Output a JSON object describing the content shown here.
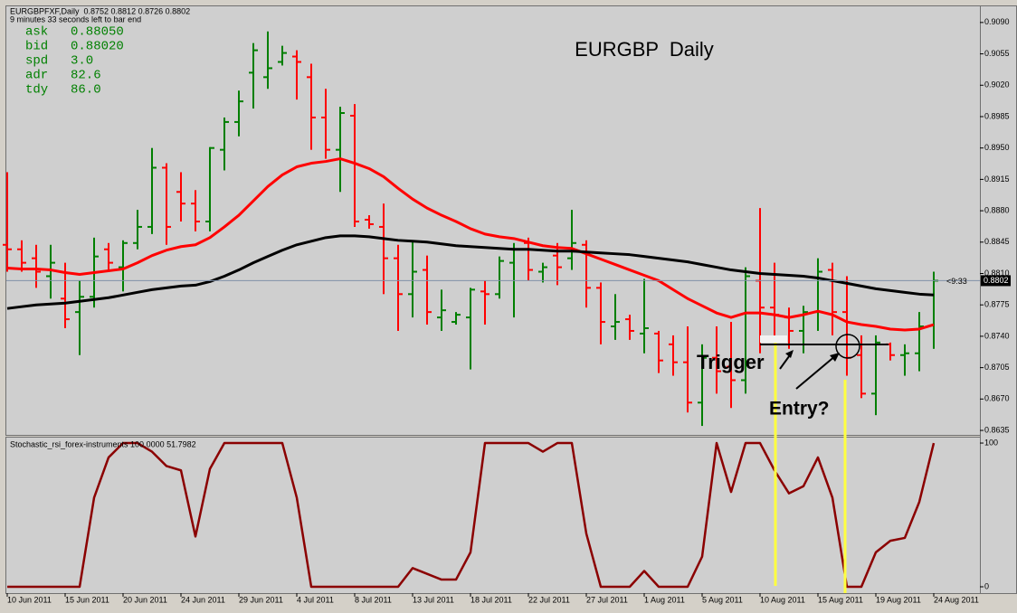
{
  "chart_data": [
    {
      "type": "ohlc",
      "header": "EURGBPFXF,Daily  0.8752 0.8812 0.8726 0.8802",
      "timer": "9 minutes 33 seconds left to bar end",
      "title": "EURGBP  Daily",
      "info": [
        {
          "label": "ask",
          "value": "0.88050"
        },
        {
          "label": "bid",
          "value": "0.88020"
        },
        {
          "label": "spd",
          "value": "3.0"
        },
        {
          "label": "adr",
          "value": "82.6"
        },
        {
          "label": "tdy",
          "value": "86.0"
        }
      ],
      "info_color": "#008000",
      "annotations": [
        "Trigger",
        "Entry?"
      ],
      "categories": [
        "10 Jun 2011",
        null,
        null,
        null,
        "15 Jun 2011",
        null,
        null,
        null,
        "20 Jun 2011",
        null,
        null,
        null,
        "24 Jun 2011",
        null,
        null,
        null,
        "29 Jun 2011",
        null,
        null,
        null,
        "4 Jul 2011",
        null,
        null,
        null,
        "8 Jul 2011",
        null,
        null,
        null,
        "13 Jul 2011",
        null,
        null,
        null,
        "18 Jul 2011",
        null,
        null,
        null,
        "22 Jul 2011",
        null,
        null,
        null,
        "27 Jul 2011",
        null,
        null,
        null,
        "1 Aug 2011",
        null,
        null,
        null,
        "5 Aug 2011",
        null,
        null,
        null,
        "10 Aug 2011",
        null,
        null,
        null,
        "15 Aug 2011",
        null,
        null,
        null,
        "19 Aug 2011",
        null,
        null,
        null,
        "24 Aug 2011"
      ],
      "open": [
        0.8842,
        0.8837,
        0.8827,
        0.8807,
        0.8782,
        0.8767,
        0.8784,
        0.8837,
        0.8817,
        0.8844,
        0.8862,
        0.8928,
        0.8901,
        0.8888,
        0.8868,
        0.8948,
        0.8979,
        0.9034,
        0.9029,
        0.9046,
        0.9052,
        0.9029,
        0.8984,
        0.8948,
        0.8986,
        0.887,
        0.8862,
        0.8827,
        0.8787,
        0.8814,
        0.8761,
        0.8756,
        0.8761,
        0.879,
        0.8787,
        0.8822,
        0.8844,
        0.8812,
        0.883,
        0.8827,
        0.8842,
        0.8794,
        0.8751,
        0.8759,
        0.8743,
        0.8743,
        0.8731,
        0.8711,
        0.8666,
        0.8716,
        0.8706,
        0.8691,
        0.8802,
        0.8772,
        0.8761,
        0.8746,
        0.8767,
        0.8814,
        0.8767,
        0.8719,
        0.8676,
        0.8731,
        0.8719,
        0.8721,
        0.8752
      ],
      "high": [
        0.8923,
        0.8847,
        0.8842,
        0.8842,
        0.8822,
        0.8802,
        0.885,
        0.8844,
        0.8847,
        0.8881,
        0.895,
        0.8933,
        0.8923,
        0.8903,
        0.8951,
        0.8984,
        0.9014,
        0.9067,
        0.908,
        0.9064,
        0.9059,
        0.9044,
        0.9016,
        0.8996,
        0.8999,
        0.8875,
        0.8888,
        0.8842,
        0.8847,
        0.883,
        0.8792,
        0.8767,
        0.8794,
        0.8802,
        0.8829,
        0.8844,
        0.885,
        0.8822,
        0.8844,
        0.8881,
        0.8847,
        0.88,
        0.8787,
        0.8764,
        0.8804,
        0.8746,
        0.8741,
        0.8751,
        0.8731,
        0.8751,
        0.8756,
        0.8817,
        0.8883,
        0.8822,
        0.8772,
        0.8774,
        0.8827,
        0.8822,
        0.8807,
        0.8741,
        0.8741,
        0.8733,
        0.8731,
        0.8767,
        0.8812
      ],
      "low": [
        0.8812,
        0.8812,
        0.8794,
        0.8782,
        0.8749,
        0.8719,
        0.8772,
        0.8812,
        0.879,
        0.8837,
        0.8854,
        0.8842,
        0.8868,
        0.8857,
        0.8857,
        0.8925,
        0.8963,
        0.8994,
        0.9016,
        0.9042,
        0.9004,
        0.8948,
        0.8938,
        0.8901,
        0.8862,
        0.886,
        0.8787,
        0.8746,
        0.8761,
        0.8753,
        0.8746,
        0.8753,
        0.8703,
        0.8753,
        0.8782,
        0.8761,
        0.8802,
        0.88,
        0.8797,
        0.8814,
        0.8772,
        0.8731,
        0.8736,
        0.8736,
        0.8721,
        0.8699,
        0.8696,
        0.8655,
        0.864,
        0.8676,
        0.866,
        0.8676,
        0.8721,
        0.8736,
        0.8726,
        0.8721,
        0.8746,
        0.8741,
        0.8696,
        0.8671,
        0.8652,
        0.8713,
        0.8696,
        0.8701,
        0.8726
      ],
      "close": [
        0.8837,
        0.8822,
        0.8812,
        0.8822,
        0.8759,
        0.8784,
        0.8829,
        0.8822,
        0.8844,
        0.8862,
        0.8928,
        0.8862,
        0.8888,
        0.8868,
        0.895,
        0.8979,
        0.9002,
        0.9059,
        0.9039,
        0.9056,
        0.9046,
        0.8984,
        0.8948,
        0.8989,
        0.8868,
        0.8865,
        0.8827,
        0.8787,
        0.8812,
        0.8767,
        0.8769,
        0.8764,
        0.8792,
        0.8787,
        0.8824,
        0.8837,
        0.8814,
        0.8817,
        0.8817,
        0.8844,
        0.8794,
        0.8756,
        0.8756,
        0.8746,
        0.8749,
        0.8713,
        0.8711,
        0.8666,
        0.8716,
        0.8701,
        0.8691,
        0.8807,
        0.8772,
        0.8764,
        0.8746,
        0.8767,
        0.8812,
        0.8767,
        0.8716,
        0.8676,
        0.8733,
        0.8719,
        0.8721,
        0.8751,
        0.8802
      ],
      "up_color": "#007f00",
      "down_color": "#ff0000",
      "series": [
        {
          "color": "#ff0000",
          "values": [
            0.8816,
            0.8815,
            0.8815,
            0.8814,
            0.8811,
            0.8809,
            0.8811,
            0.8813,
            0.8815,
            0.8822,
            0.883,
            0.8836,
            0.884,
            0.8842,
            0.885,
            0.8862,
            0.8875,
            0.8891,
            0.8907,
            0.892,
            0.8929,
            0.8933,
            0.8935,
            0.8938,
            0.8933,
            0.8927,
            0.8918,
            0.8905,
            0.8893,
            0.8883,
            0.8875,
            0.8868,
            0.886,
            0.8854,
            0.8851,
            0.8849,
            0.8845,
            0.8841,
            0.8839,
            0.8838,
            0.8832,
            0.8826,
            0.882,
            0.8814,
            0.8808,
            0.8802,
            0.8792,
            0.8782,
            0.8774,
            0.8766,
            0.8761,
            0.8766,
            0.8766,
            0.8764,
            0.8761,
            0.8764,
            0.8768,
            0.8764,
            0.8756,
            0.8753,
            0.8751,
            0.8748,
            0.8747,
            0.8748,
            0.8753
          ]
        },
        {
          "color": "#000000",
          "values": [
            0.8771,
            0.8773,
            0.8775,
            0.8776,
            0.8777,
            0.8779,
            0.8781,
            0.8783,
            0.8786,
            0.8789,
            0.8792,
            0.8794,
            0.8796,
            0.8797,
            0.8801,
            0.8807,
            0.8814,
            0.8822,
            0.8829,
            0.8836,
            0.8842,
            0.8846,
            0.885,
            0.8852,
            0.8852,
            0.8851,
            0.8849,
            0.8847,
            0.8846,
            0.8845,
            0.8843,
            0.8841,
            0.884,
            0.8839,
            0.8838,
            0.8837,
            0.8837,
            0.8836,
            0.8835,
            0.8835,
            0.8834,
            0.8833,
            0.8832,
            0.8831,
            0.8829,
            0.8827,
            0.8825,
            0.8823,
            0.882,
            0.8817,
            0.8814,
            0.8812,
            0.881,
            0.8809,
            0.8808,
            0.8807,
            0.8805,
            0.8802,
            0.8799,
            0.8796,
            0.8793,
            0.8791,
            0.8789,
            0.8787,
            0.8786
          ]
        }
      ],
      "ylim": [
        0.8631,
        0.9107
      ],
      "yticks": [
        {
          "value": 0.909,
          "label": "0.9090"
        },
        0.9055,
        {
          "value": 0.902,
          "label": "0.9020"
        },
        0.8985,
        {
          "value": 0.895,
          "label": "0.8950"
        },
        0.8915,
        {
          "value": 0.888,
          "label": "0.8880"
        },
        0.8845,
        {
          "value": 0.881,
          "label": "0.8810"
        },
        0.8775,
        {
          "value": 0.874,
          "label": "0.8740"
        },
        0.8705,
        {
          "value": 0.867,
          "label": "0.8670"
        },
        0.8635
      ],
      "last_price": {
        "value": 0.8802,
        "label": "0.8802"
      },
      "countdown_label": "<9:33"
    },
    {
      "type": "line",
      "title": "Stochastic_rsi_forex-instruments 100.0000 51.7982",
      "color": "#8b0000",
      "values": [
        0,
        0,
        0,
        0,
        0,
        0,
        62,
        90,
        100,
        100,
        94,
        84,
        81,
        35,
        82,
        100,
        100,
        100,
        100,
        100,
        62,
        0,
        0,
        0,
        0,
        0,
        0,
        0,
        13,
        9,
        5,
        5,
        24,
        100,
        100,
        100,
        100,
        94,
        100,
        100,
        37,
        0,
        0,
        0,
        11,
        0,
        0,
        0,
        21,
        100,
        66,
        100,
        100,
        81,
        65,
        70,
        90,
        62,
        0,
        0,
        24,
        32,
        34,
        59,
        100
      ],
      "ylim": [
        -4.4,
        103.8
      ],
      "yticks": [
        0,
        100
      ]
    }
  ]
}
